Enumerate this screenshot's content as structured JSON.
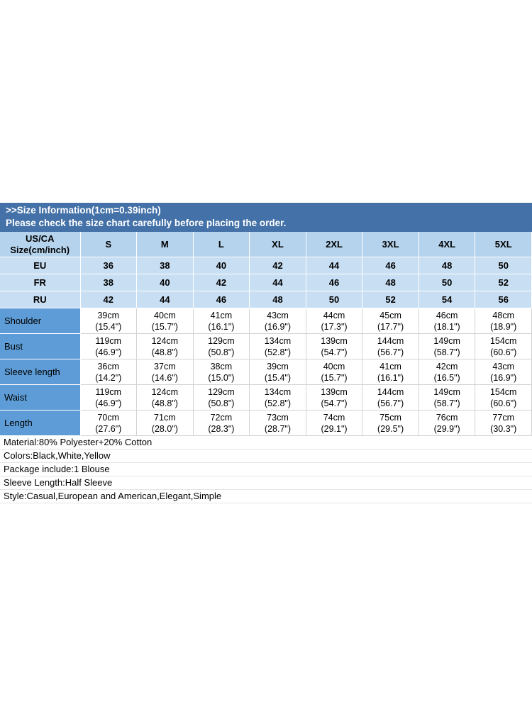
{
  "colors": {
    "banner_bg": "#4472A8",
    "header_row_bg": "#B5D3ED",
    "region_row_bg": "#C8DEF2",
    "measure_label_bg": "#5D9CD6",
    "banner_text": "#FFFFFF"
  },
  "banner": {
    "line1": ">>Size Information(1cm=0.39inch)",
    "line2": "Please check the size chart carefully before placing the order."
  },
  "size_table": {
    "corner_label": "US/CA\nSize(cm/inch)",
    "size_headers": [
      "S",
      "M",
      "L",
      "XL",
      "2XL",
      "3XL",
      "4XL",
      "5XL"
    ],
    "region_rows": [
      {
        "label": "EU",
        "values": [
          "36",
          "38",
          "40",
          "42",
          "44",
          "46",
          "48",
          "50"
        ]
      },
      {
        "label": "FR",
        "values": [
          "38",
          "40",
          "42",
          "44",
          "46",
          "48",
          "50",
          "52"
        ]
      },
      {
        "label": "RU",
        "values": [
          "42",
          "44",
          "46",
          "48",
          "50",
          "52",
          "54",
          "56"
        ]
      }
    ],
    "measure_rows": [
      {
        "label": "Shoulder",
        "values": [
          "39cm\n(15.4\")",
          "40cm\n(15.7\")",
          "41cm\n(16.1\")",
          "43cm\n(16.9\")",
          "44cm\n(17.3\")",
          "45cm\n(17.7\")",
          "46cm\n(18.1\")",
          "48cm\n(18.9\")"
        ]
      },
      {
        "label": "Bust",
        "values": [
          "119cm\n(46.9\")",
          "124cm\n(48.8\")",
          "129cm\n(50.8\")",
          "134cm\n(52.8\")",
          "139cm\n(54.7\")",
          "144cm\n(56.7\")",
          "149cm\n(58.7\")",
          "154cm\n(60.6\")"
        ]
      },
      {
        "label": "Sleeve length",
        "values": [
          "36cm\n(14.2\")",
          "37cm\n(14.6\")",
          "38cm\n(15.0\")",
          "39cm\n(15.4\")",
          "40cm\n(15.7\")",
          "41cm\n(16.1\")",
          "42cm\n(16.5\")",
          "43cm\n(16.9\")"
        ]
      },
      {
        "label": "Waist",
        "values": [
          "119cm\n(46.9\")",
          "124cm\n(48.8\")",
          "129cm\n(50.8\")",
          "134cm\n(52.8\")",
          "139cm\n(54.7\")",
          "144cm\n(56.7\")",
          "149cm\n(58.7\")",
          "154cm\n(60.6\")"
        ]
      },
      {
        "label": "Length",
        "values": [
          "70cm\n(27.6\")",
          "71cm\n(28.0\")",
          "72cm\n(28.3\")",
          "73cm\n(28.7\")",
          "74cm\n(29.1\")",
          "75cm\n(29.5\")",
          "76cm\n(29.9\")",
          "77cm\n(30.3\")"
        ]
      }
    ]
  },
  "details": {
    "lines": [
      "Material:80% Polyester+20% Cotton",
      "Colors:Black,White,Yellow",
      "Package include:1 Blouse",
      "Sleeve Length:Half Sleeve",
      "Style:Casual,European and American,Elegant,Simple"
    ]
  }
}
